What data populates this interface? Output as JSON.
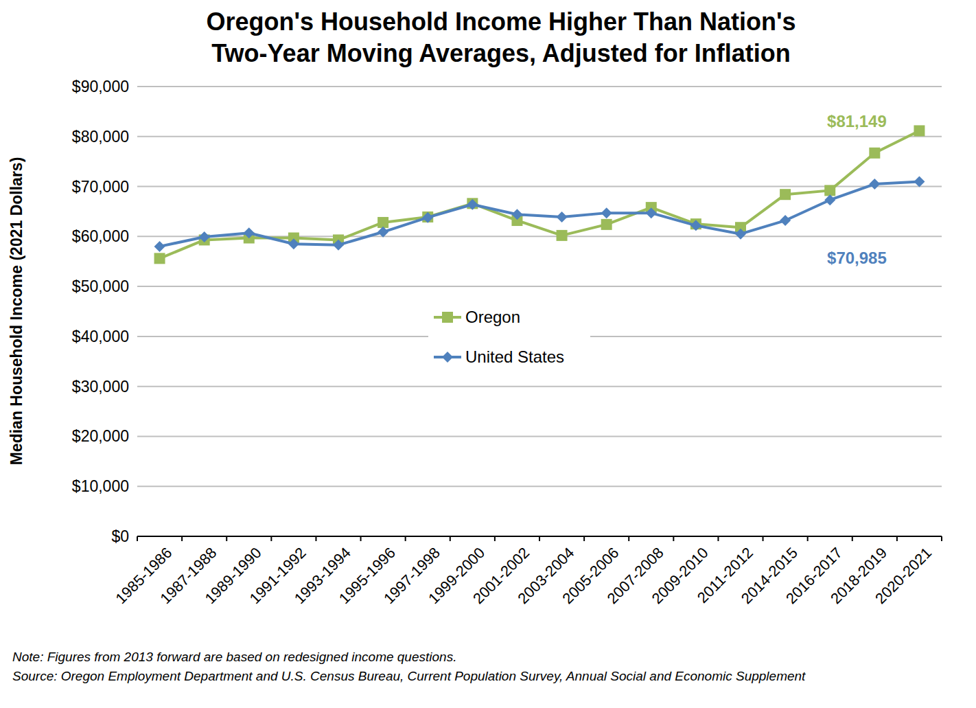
{
  "chart_data": {
    "type": "line",
    "title": "Oregon's Household Income Higher Than Nation's",
    "subtitle": "Two-Year Moving Averages, Adjusted for Inflation",
    "y_label": "Median Household Income (2021 Dollars)",
    "note": "Note: Figures from 2013 forward are based on redesigned income questions.",
    "source": "Source: Oregon Employment Department and U.S. Census Bureau, Current Population Survey, Annual Social and Economic Supplement",
    "categories": [
      "1985-1986",
      "1987-1988",
      "1989-1990",
      "1991-1992",
      "1993-1994",
      "1995-1996",
      "1997-1998",
      "1999-2000",
      "2001-2002",
      "2003-2004",
      "2005-2006",
      "2007-2008",
      "2009-2010",
      "2011-2012",
      "2014-2015",
      "2016-2017",
      "2018-2019",
      "2020-2021"
    ],
    "series": [
      {
        "name": "Oregon",
        "color": "#9bbb59",
        "marker": "square",
        "values": [
          55600,
          59300,
          59700,
          59700,
          59300,
          62800,
          63900,
          66600,
          63200,
          60200,
          62400,
          65800,
          62500,
          61800,
          68400,
          69200,
          76700,
          81149
        ],
        "value_labels": [
          null,
          null,
          null,
          null,
          null,
          null,
          null,
          null,
          null,
          null,
          null,
          null,
          null,
          null,
          null,
          null,
          null,
          "$81,149"
        ]
      },
      {
        "name": "United States",
        "color": "#4f81bd",
        "marker": "diamond",
        "values": [
          58000,
          59900,
          60700,
          58500,
          58300,
          60900,
          63800,
          66400,
          64400,
          63900,
          64700,
          64700,
          62200,
          60500,
          63200,
          67300,
          70500,
          70985
        ],
        "value_labels": [
          null,
          null,
          null,
          null,
          null,
          null,
          null,
          null,
          null,
          null,
          null,
          null,
          null,
          null,
          null,
          null,
          null,
          "$70,985"
        ]
      }
    ],
    "ylim": [
      0,
      90000
    ],
    "yticks": [
      {
        "value": 0,
        "label": "$0"
      },
      {
        "value": 10000,
        "label": "$10,000"
      },
      {
        "value": 20000,
        "label": "$20,000"
      },
      {
        "value": 30000,
        "label": "$30,000"
      },
      {
        "value": 40000,
        "label": "$40,000"
      },
      {
        "value": 50000,
        "label": "$50,000"
      },
      {
        "value": 60000,
        "label": "$60,000"
      },
      {
        "value": 70000,
        "label": "$70,000"
      },
      {
        "value": 80000,
        "label": "$80,000"
      },
      {
        "value": 90000,
        "label": "$90,000"
      }
    ],
    "grid": true,
    "legend": "center"
  }
}
